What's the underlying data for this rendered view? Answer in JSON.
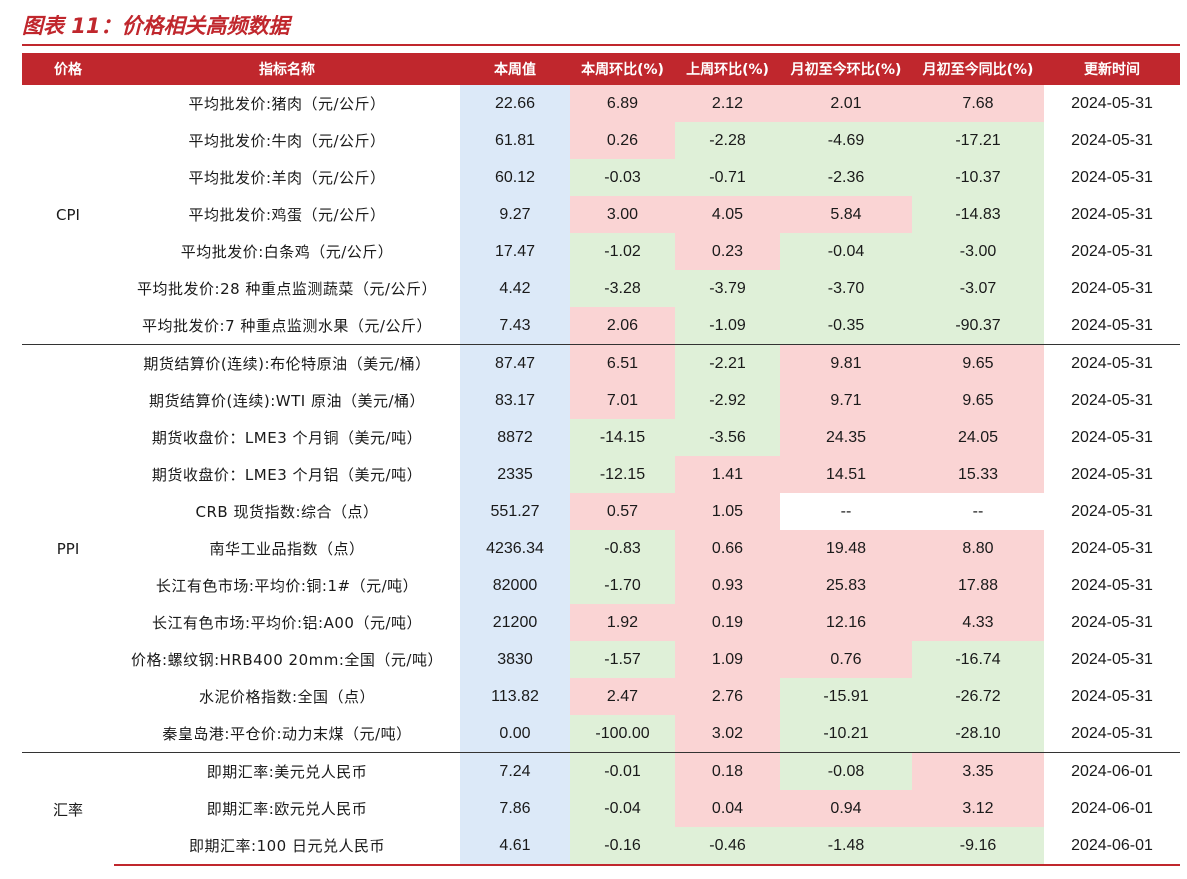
{
  "title": "图表 11：价格相关高频数据",
  "headers": {
    "category": "价格",
    "indicator": "指标名称",
    "week_value": "本周值",
    "wow": "本周环比(%)",
    "prev_wow": "上周环比(%)",
    "mtd_mom": "月初至今环比(%)",
    "mtd_yoy": "月初至今同比(%)",
    "updated": "更新时间"
  },
  "groups": [
    {
      "name": "CPI",
      "rows": [
        {
          "name": "平均批发价:猪肉（元/公斤）",
          "value": "22.66",
          "wow": "6.89",
          "prev_wow": "2.12",
          "mtd_mom": "2.01",
          "mtd_yoy": "7.68",
          "date": "2024-05-31",
          "c": [
            "pos",
            "pos",
            "pos",
            "pos"
          ]
        },
        {
          "name": "平均批发价:牛肉（元/公斤）",
          "value": "61.81",
          "wow": "0.26",
          "prev_wow": "-2.28",
          "mtd_mom": "-4.69",
          "mtd_yoy": "-17.21",
          "date": "2024-05-31",
          "c": [
            "pos",
            "neg",
            "neg",
            "neg"
          ]
        },
        {
          "name": "平均批发价:羊肉（元/公斤）",
          "value": "60.12",
          "wow": "-0.03",
          "prev_wow": "-0.71",
          "mtd_mom": "-2.36",
          "mtd_yoy": "-10.37",
          "date": "2024-05-31",
          "c": [
            "neg",
            "neg",
            "neg",
            "neg"
          ]
        },
        {
          "name": "平均批发价:鸡蛋（元/公斤）",
          "value": "9.27",
          "wow": "3.00",
          "prev_wow": "4.05",
          "mtd_mom": "5.84",
          "mtd_yoy": "-14.83",
          "date": "2024-05-31",
          "c": [
            "pos",
            "pos",
            "pos",
            "neg"
          ]
        },
        {
          "name": "平均批发价:白条鸡（元/公斤）",
          "value": "17.47",
          "wow": "-1.02",
          "prev_wow": "0.23",
          "mtd_mom": "-0.04",
          "mtd_yoy": "-3.00",
          "date": "2024-05-31",
          "c": [
            "neg",
            "pos",
            "neg",
            "neg"
          ]
        },
        {
          "name": "平均批发价:28 种重点监测蔬菜（元/公斤）",
          "value": "4.42",
          "wow": "-3.28",
          "prev_wow": "-3.79",
          "mtd_mom": "-3.70",
          "mtd_yoy": "-3.07",
          "date": "2024-05-31",
          "c": [
            "neg",
            "neg",
            "neg",
            "neg"
          ]
        },
        {
          "name": "平均批发价:7 种重点监测水果（元/公斤）",
          "value": "7.43",
          "wow": "2.06",
          "prev_wow": "-1.09",
          "mtd_mom": "-0.35",
          "mtd_yoy": "-90.37",
          "date": "2024-05-31",
          "c": [
            "pos",
            "neg",
            "neg",
            "neg"
          ]
        }
      ]
    },
    {
      "name": "PPI",
      "rows": [
        {
          "name": "期货结算价(连续):布伦特原油（美元/桶）",
          "value": "87.47",
          "wow": "6.51",
          "prev_wow": "-2.21",
          "mtd_mom": "9.81",
          "mtd_yoy": "9.65",
          "date": "2024-05-31",
          "c": [
            "pos",
            "neg",
            "pos",
            "pos"
          ]
        },
        {
          "name": "期货结算价(连续):WTI 原油（美元/桶）",
          "value": "83.17",
          "wow": "7.01",
          "prev_wow": "-2.92",
          "mtd_mom": "9.71",
          "mtd_yoy": "9.65",
          "date": "2024-05-31",
          "c": [
            "pos",
            "neg",
            "pos",
            "pos"
          ]
        },
        {
          "name": "期货收盘价：LME3 个月铜（美元/吨）",
          "value": "8872",
          "wow": "-14.15",
          "prev_wow": "-3.56",
          "mtd_mom": "24.35",
          "mtd_yoy": "24.05",
          "date": "2024-05-31",
          "c": [
            "neg",
            "neg",
            "pos",
            "pos"
          ]
        },
        {
          "name": "期货收盘价：LME3 个月铝（美元/吨）",
          "value": "2335",
          "wow": "-12.15",
          "prev_wow": "1.41",
          "mtd_mom": "14.51",
          "mtd_yoy": "15.33",
          "date": "2024-05-31",
          "c": [
            "neg",
            "pos",
            "pos",
            "pos"
          ]
        },
        {
          "name": "CRB 现货指数:综合（点）",
          "value": "551.27",
          "wow": "0.57",
          "prev_wow": "1.05",
          "mtd_mom": "--",
          "mtd_yoy": "--",
          "date": "2024-05-31",
          "c": [
            "pos",
            "pos",
            "na",
            "na"
          ]
        },
        {
          "name": "南华工业品指数（点）",
          "value": "4236.34",
          "wow": "-0.83",
          "prev_wow": "0.66",
          "mtd_mom": "19.48",
          "mtd_yoy": "8.80",
          "date": "2024-05-31",
          "c": [
            "neg",
            "pos",
            "pos",
            "pos"
          ]
        },
        {
          "name": "长江有色市场:平均价:铜:1#（元/吨）",
          "value": "82000",
          "wow": "-1.70",
          "prev_wow": "0.93",
          "mtd_mom": "25.83",
          "mtd_yoy": "17.88",
          "date": "2024-05-31",
          "c": [
            "neg",
            "pos",
            "pos",
            "pos"
          ]
        },
        {
          "name": "长江有色市场:平均价:铝:A00（元/吨）",
          "value": "21200",
          "wow": "1.92",
          "prev_wow": "0.19",
          "mtd_mom": "12.16",
          "mtd_yoy": "4.33",
          "date": "2024-05-31",
          "c": [
            "pos",
            "pos",
            "pos",
            "pos"
          ]
        },
        {
          "name": "价格:螺纹钢:HRB400 20mm:全国（元/吨）",
          "value": "3830",
          "wow": "-1.57",
          "prev_wow": "1.09",
          "mtd_mom": "0.76",
          "mtd_yoy": "-16.74",
          "date": "2024-05-31",
          "c": [
            "neg",
            "pos",
            "pos",
            "neg"
          ]
        },
        {
          "name": "水泥价格指数:全国（点）",
          "value": "113.82",
          "wow": "2.47",
          "prev_wow": "2.76",
          "mtd_mom": "-15.91",
          "mtd_yoy": "-26.72",
          "date": "2024-05-31",
          "c": [
            "pos",
            "pos",
            "neg",
            "neg"
          ]
        },
        {
          "name": "秦皇岛港:平仓价:动力末煤（元/吨）",
          "value": "0.00",
          "wow": "-100.00",
          "prev_wow": "3.02",
          "mtd_mom": "-10.21",
          "mtd_yoy": "-28.10",
          "date": "2024-05-31",
          "c": [
            "neg",
            "pos",
            "neg",
            "neg"
          ]
        }
      ]
    },
    {
      "name": "汇率",
      "rows": [
        {
          "name": "即期汇率:美元兑人民币",
          "value": "7.24",
          "wow": "-0.01",
          "prev_wow": "0.18",
          "mtd_mom": "-0.08",
          "mtd_yoy": "3.35",
          "date": "2024-06-01",
          "c": [
            "neg",
            "pos",
            "neg",
            "pos"
          ]
        },
        {
          "name": "即期汇率:欧元兑人民币",
          "value": "7.86",
          "wow": "-0.04",
          "prev_wow": "0.04",
          "mtd_mom": "0.94",
          "mtd_yoy": "3.12",
          "date": "2024-06-01",
          "c": [
            "neg",
            "pos",
            "pos",
            "pos"
          ]
        },
        {
          "name": "即期汇率:100 日元兑人民币",
          "value": "4.61",
          "wow": "-0.16",
          "prev_wow": "-0.46",
          "mtd_mom": "-1.48",
          "mtd_yoy": "-9.16",
          "date": "2024-06-01",
          "c": [
            "neg",
            "neg",
            "neg",
            "neg"
          ]
        }
      ]
    }
  ]
}
